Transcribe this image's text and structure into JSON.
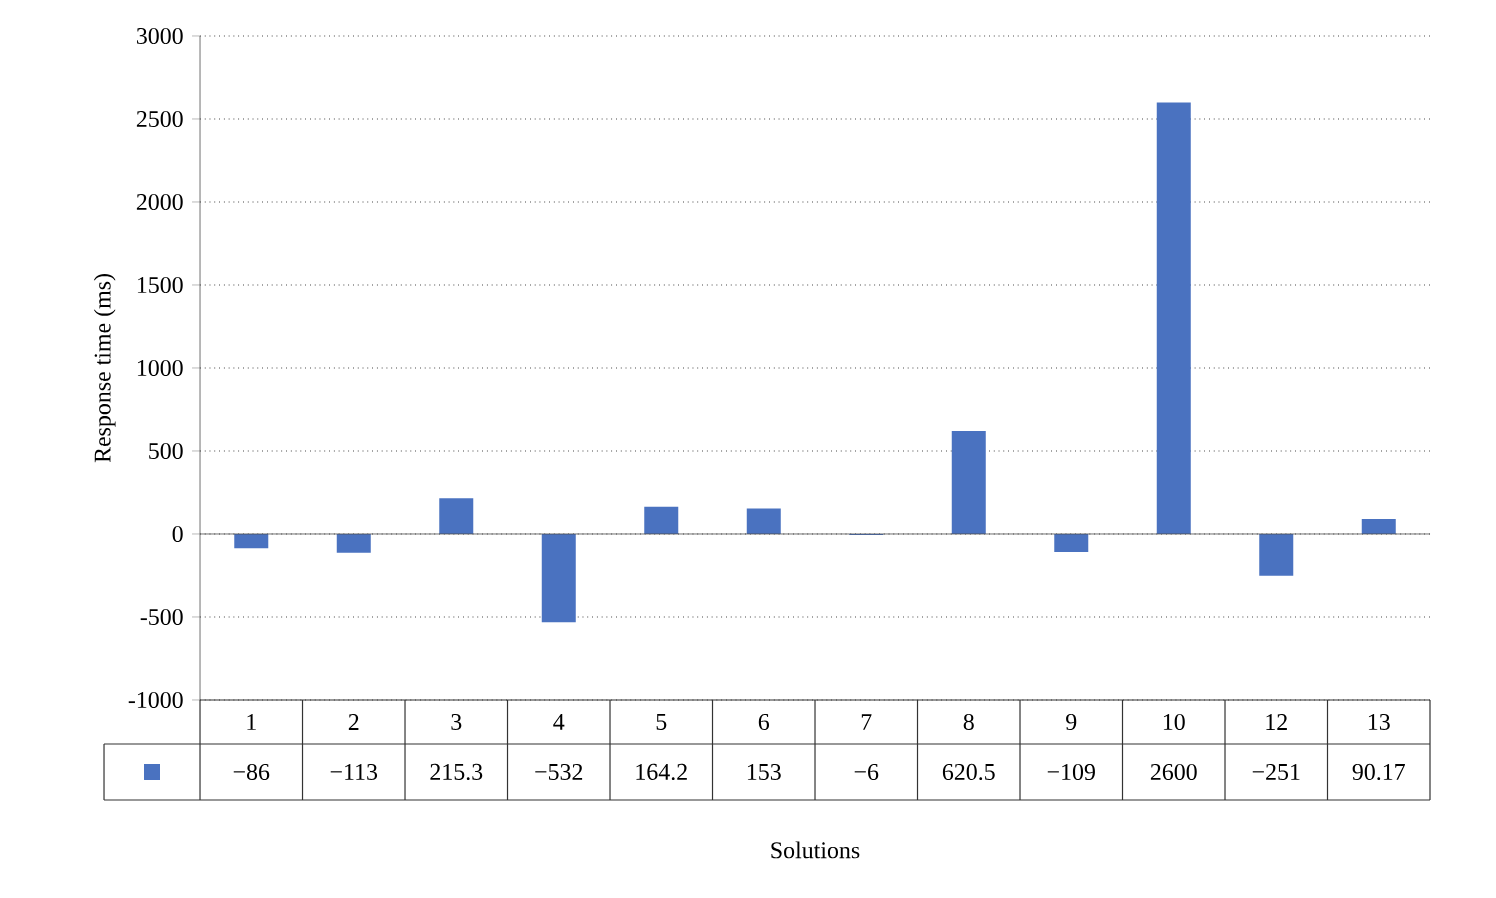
{
  "chart_data": {
    "type": "bar",
    "xlabel": "Solutions",
    "ylabel": "Response time (ms)",
    "categories": [
      "1",
      "2",
      "3",
      "4",
      "5",
      "6",
      "7",
      "8",
      "9",
      "10",
      "12",
      "13"
    ],
    "values": [
      -86,
      -113,
      215.3,
      -532,
      164.2,
      153,
      -6,
      620.5,
      -109,
      2600,
      -251,
      90.17
    ],
    "color": "#4a72c0",
    "ylim": [
      -1000,
      3000
    ],
    "yticks": [
      -1000,
      -500,
      0,
      500,
      1000,
      1500,
      2000,
      2500,
      3000
    ],
    "grid": "y",
    "data_labels": true
  }
}
